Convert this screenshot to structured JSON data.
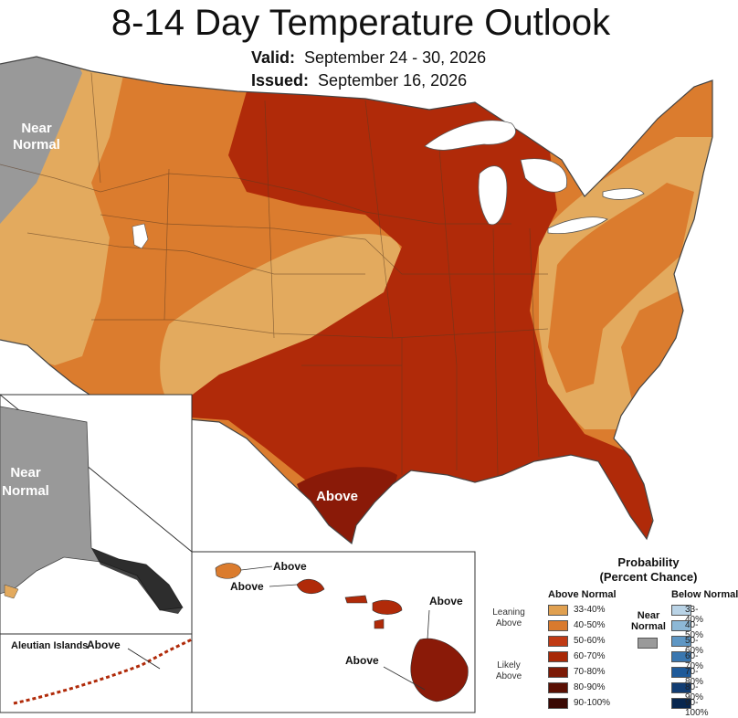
{
  "header": {
    "title": "8-14 Day Temperature Outlook",
    "valid_label": "Valid:",
    "valid_value": "September 24 - 30, 2026",
    "issued_label": "Issued:",
    "issued_value": "September 16, 2026"
  },
  "map_labels": {
    "conus_near_normal_1": "Near",
    "conus_near_normal_2": "Normal",
    "alaska_near_normal_1": "Near",
    "alaska_near_normal_2": "Normal",
    "texas_above": "Above",
    "aleutian_prefix": "Aleutian Islands",
    "aleutian_above": "Above",
    "hawaii_kauai": "Above",
    "hawaii_oahu": "Above",
    "hawaii_maui": "Above",
    "hawaii_big_island": "Above"
  },
  "legend": {
    "title_1": "Probability",
    "title_2": "(Percent Chance)",
    "above_header": "Above Normal",
    "below_header": "Below Normal",
    "leaning_1": "Leaning",
    "leaning_2": "Above",
    "likely_1": "Likely",
    "likely_2": "Above",
    "near_1": "Near",
    "near_2": "Normal",
    "above_ranges": [
      "33-40%",
      "40-50%",
      "50-60%",
      "60-70%",
      "70-80%",
      "80-90%",
      "90-100%"
    ],
    "below_ranges": [
      "33-40%",
      "40-50%",
      "50-60%",
      "60-70%",
      "70-80%",
      "80-90%",
      "90-100%"
    ],
    "above_colors": [
      "#e0a050",
      "#d97a2e",
      "#c03a14",
      "#a82806",
      "#7c1a06",
      "#5a1004",
      "#3a0803"
    ],
    "near_color": "#9a9a9a",
    "colors": {
      "near_normal": "#999999",
      "above_33_40": "#e3aa5e",
      "above_40_50": "#db7c2e",
      "above_50_60": "#b02a09",
      "above_60_70": "#8a1a08"
    }
  }
}
